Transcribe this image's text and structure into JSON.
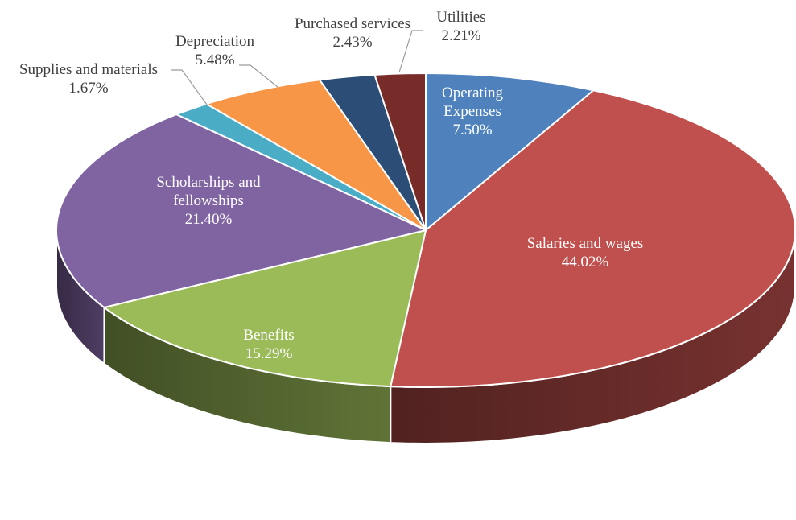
{
  "chart_data": {
    "type": "pie",
    "title": "",
    "style": "3d-exploded-none",
    "slices": [
      {
        "label_lines": [
          "Operating",
          "Expenses"
        ],
        "value_label": "7.50%",
        "value": 7.5,
        "color": "#4F81BD",
        "label_position": "inside"
      },
      {
        "label_lines": [
          "Salaries and wages"
        ],
        "value_label": "44.02%",
        "value": 44.02,
        "color": "#C0504D",
        "label_position": "inside"
      },
      {
        "label_lines": [
          "Benefits"
        ],
        "value_label": "15.29%",
        "value": 15.29,
        "color": "#9BBB59",
        "label_position": "inside"
      },
      {
        "label_lines": [
          "Scholarships and",
          "fellowships"
        ],
        "value_label": "21.40%",
        "value": 21.4,
        "color": "#8064A2",
        "label_position": "inside"
      },
      {
        "label_lines": [
          "Supplies and materials"
        ],
        "value_label": "1.67%",
        "value": 1.67,
        "color": "#4BACC6",
        "label_position": "outside"
      },
      {
        "label_lines": [
          "Depreciation"
        ],
        "value_label": "5.48%",
        "value": 5.48,
        "color": "#F79646",
        "label_position": "outside"
      },
      {
        "label_lines": [
          "Purchased services"
        ],
        "value_label": "2.43%",
        "value": 2.43,
        "color": "#2C4D75",
        "label_position": "outside"
      },
      {
        "label_lines": [
          "Utilities"
        ],
        "value_label": "2.21%",
        "value": 2.21,
        "color": "#772C2A",
        "label_position": "outside"
      }
    ]
  }
}
